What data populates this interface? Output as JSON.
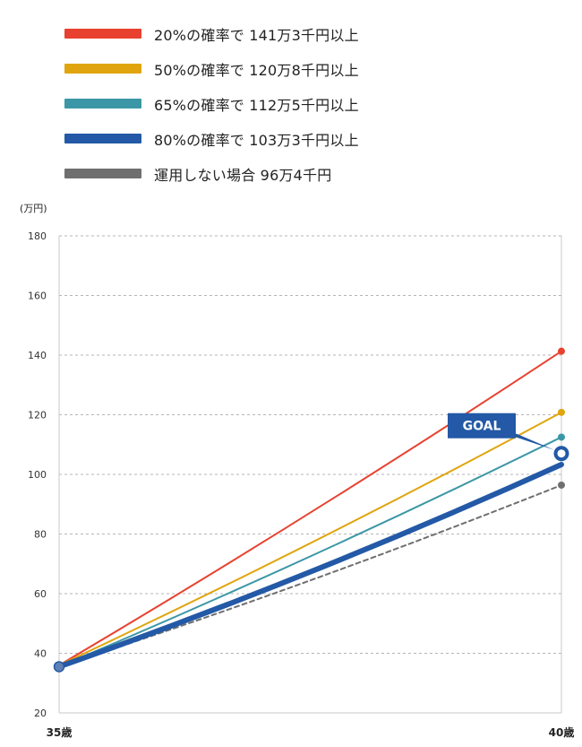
{
  "chart_data": {
    "type": "line",
    "unit_label": "(万円)",
    "x": [
      "35歳",
      "40歳"
    ],
    "ylim": [
      20,
      180
    ],
    "yticks": [
      "20",
      "40",
      "60",
      "80",
      "100",
      "120",
      "140",
      "160",
      "180"
    ],
    "grid": true,
    "legend_position": "top-left",
    "series": [
      {
        "name": "20%の確率で 141万3千円以上",
        "values": [
          36,
          141.3
        ],
        "color": "#e8412f",
        "style": "solid"
      },
      {
        "name": "50%の確率で 120万8千円以上",
        "values": [
          36,
          120.8
        ],
        "color": "#e0a50e",
        "style": "solid"
      },
      {
        "name": "65%の確率で 112万5千円以上",
        "values": [
          35.5,
          112.5
        ],
        "color": "#3b97a6",
        "style": "solid"
      },
      {
        "name": "80%の確率で 103万3千円以上",
        "values": [
          35.5,
          103.3
        ],
        "color": "#2359a6",
        "style": "thick"
      },
      {
        "name": "運用しない場合 96万4千円",
        "values": [
          35.5,
          96.4
        ],
        "color": "#6f6f6f",
        "style": "dashed"
      }
    ],
    "annotation": {
      "text": "GOAL",
      "value": 107,
      "color": "#2359a6"
    }
  }
}
